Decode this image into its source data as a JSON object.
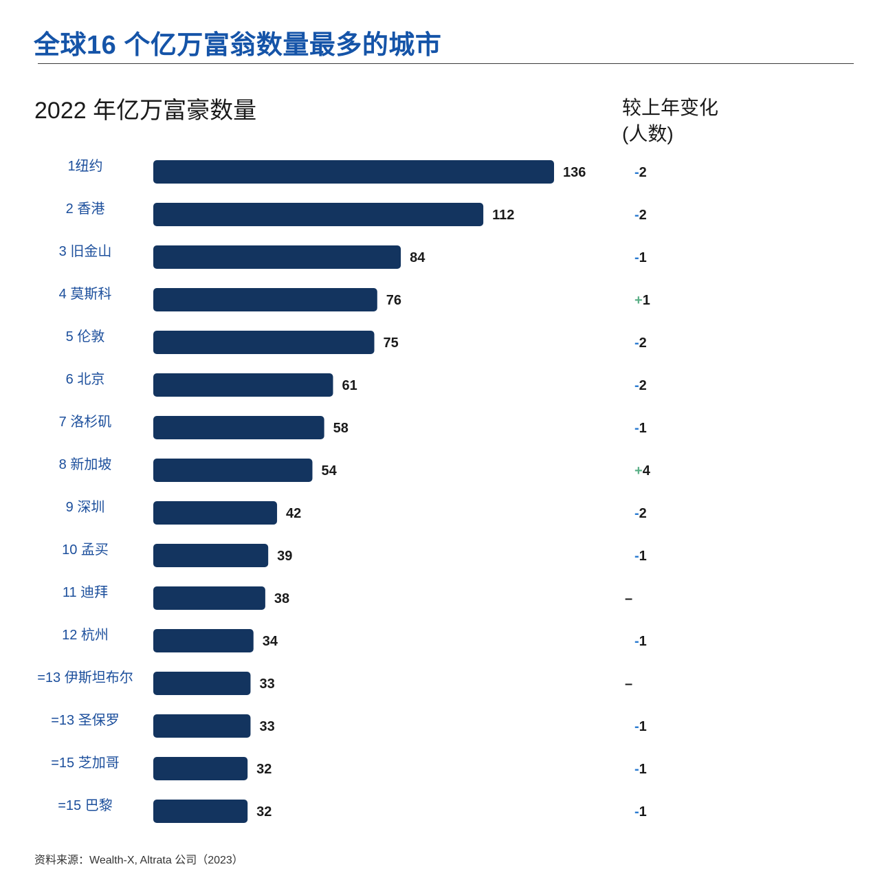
{
  "title": "全球16 个亿万富翁数量最多的城市",
  "change_header": {
    "line1": "较上年变化",
    "line2": "(人数)"
  },
  "source": "资料来源：Wealth-X, Altrata 公司（2023）",
  "colors": {
    "title": "#1554a8",
    "bar": "#13345f",
    "label": "#1c4f9c",
    "minus": "#2a7bd1",
    "plus": "#5aaf86"
  },
  "chart_data": {
    "type": "bar",
    "orientation": "horizontal",
    "title": "2022 年亿万富豪数量",
    "categories": [
      "1纽约",
      "2 香港",
      "3 旧金山",
      "4 莫斯科",
      "5 伦敦",
      "6 北京",
      "7 洛杉矶",
      "8 新加坡",
      "9 深圳",
      "10 孟买",
      "11 迪拜",
      "12 杭州",
      "=13 伊斯坦布尔",
      "=13 圣保罗",
      "=15 芝加哥",
      "=15 巴黎"
    ],
    "values": [
      136,
      112,
      84,
      76,
      75,
      61,
      58,
      54,
      42,
      39,
      38,
      34,
      33,
      33,
      32,
      32
    ],
    "changes": [
      {
        "sign": "-",
        "num": "2"
      },
      {
        "sign": "-",
        "num": "2"
      },
      {
        "sign": "-",
        "num": "1"
      },
      {
        "sign": "+",
        "num": "1"
      },
      {
        "sign": "-",
        "num": "2"
      },
      {
        "sign": "-",
        "num": "2"
      },
      {
        "sign": "-",
        "num": "1"
      },
      {
        "sign": "+",
        "num": "4"
      },
      {
        "sign": "-",
        "num": "2"
      },
      {
        "sign": "-",
        "num": "1"
      },
      {
        "sign": "–",
        "num": ""
      },
      {
        "sign": "-",
        "num": "1"
      },
      {
        "sign": "–",
        "num": ""
      },
      {
        "sign": "-",
        "num": "1"
      },
      {
        "sign": "-",
        "num": "1"
      },
      {
        "sign": "-",
        "num": "1"
      }
    ],
    "xlabel": "",
    "ylabel": ""
  }
}
